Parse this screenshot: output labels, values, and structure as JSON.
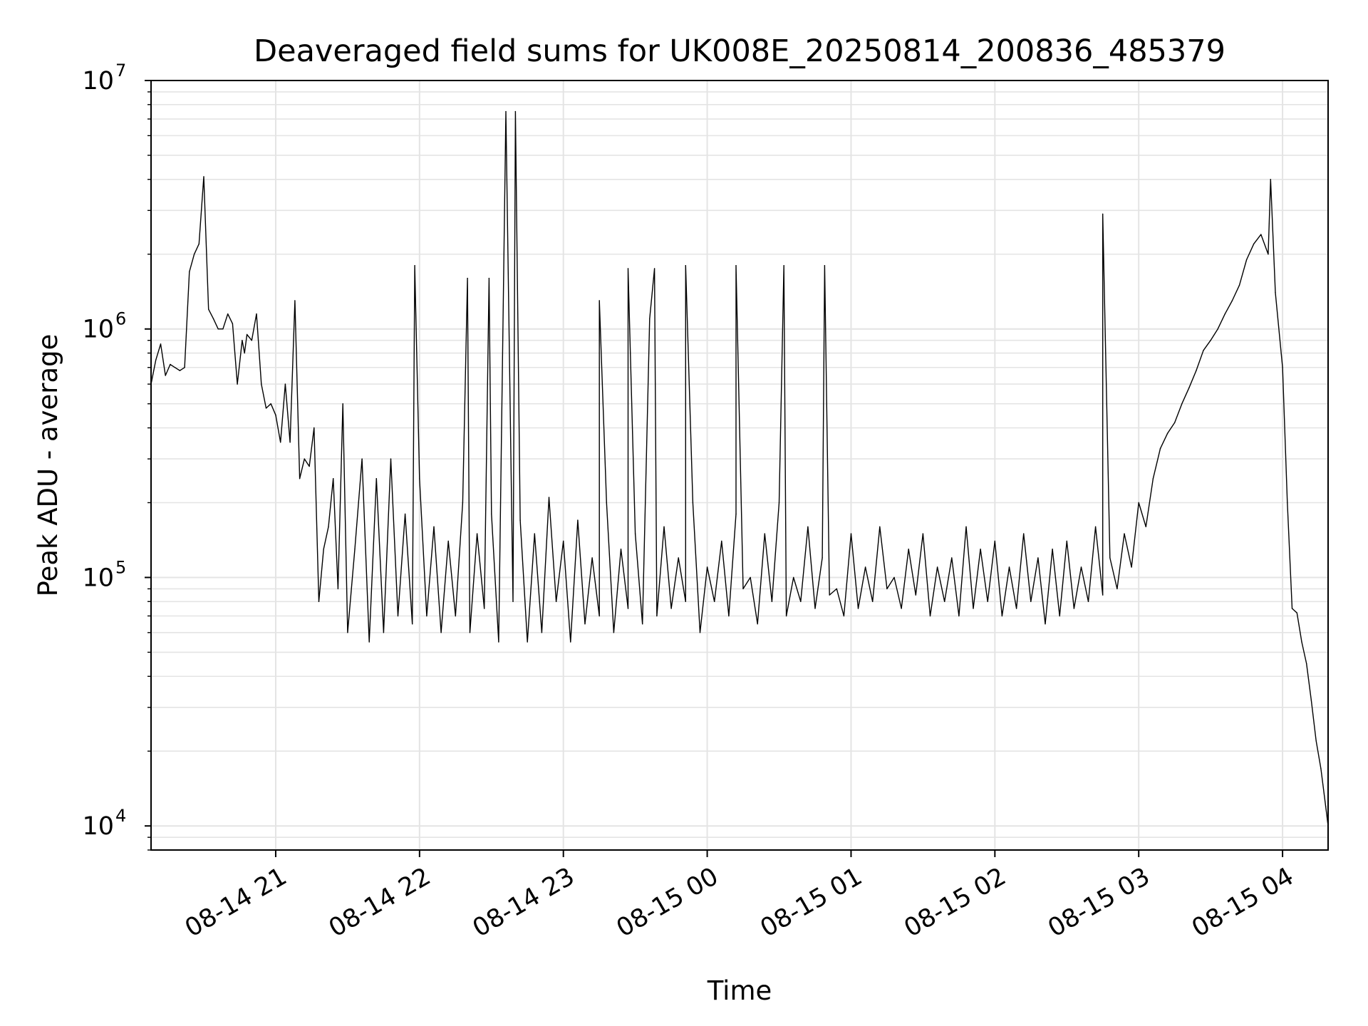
{
  "chart_data": {
    "type": "line",
    "title": "Deaveraged field sums for UK008E_20250814_200836_485379",
    "xlabel": "Time",
    "ylabel": "Peak ADU - average",
    "yscale": "log",
    "ylim": [
      8000,
      10000000
    ],
    "xlim": [
      "08-14 20:08",
      "08-15 04:19"
    ],
    "grid": true,
    "legend": "none",
    "line_color": "#000000",
    "x_ticks": [
      "08-14 21",
      "08-14 22",
      "08-14 23",
      "08-15 00",
      "08-15 01",
      "08-15 02",
      "08-15 03",
      "08-15 04"
    ],
    "y_ticks": [
      {
        "base": "10",
        "exp": "4",
        "value": 10000
      },
      {
        "base": "10",
        "exp": "5",
        "value": 100000
      },
      {
        "base": "10",
        "exp": "6",
        "value": 1000000
      },
      {
        "base": "10",
        "exp": "7",
        "value": 10000000
      }
    ],
    "series": [
      {
        "x": [
          "08-14 20:08",
          "08-14 20:10",
          "08-14 20:12",
          "08-14 20:14",
          "08-14 20:16",
          "08-14 20:18",
          "08-14 20:20",
          "08-14 20:22",
          "08-14 20:24",
          "08-14 20:26",
          "08-14 20:28",
          "08-14 20:30",
          "08-14 20:32",
          "08-14 20:34",
          "08-14 20:36",
          "08-14 20:38",
          "08-14 20:40",
          "08-14 20:42",
          "08-14 20:44",
          "08-14 20:46",
          "08-14 20:47",
          "08-14 20:48",
          "08-14 20:50",
          "08-14 20:52",
          "08-14 20:54",
          "08-14 20:56",
          "08-14 20:58",
          "08-14 21:00",
          "08-14 21:02",
          "08-14 21:04",
          "08-14 21:06",
          "08-14 21:08",
          "08-14 21:10",
          "08-14 21:12",
          "08-14 21:14",
          "08-14 21:16",
          "08-14 21:18",
          "08-14 21:20",
          "08-14 21:22",
          "08-14 21:24",
          "08-14 21:26",
          "08-14 21:28",
          "08-14 21:30",
          "08-14 21:33",
          "08-14 21:36",
          "08-14 21:39",
          "08-14 21:42",
          "08-14 21:45",
          "08-14 21:48",
          "08-14 21:51",
          "08-14 21:54",
          "08-14 21:57",
          "08-14 22:00",
          "08-14 22:03",
          "08-14 22:06",
          "08-14 22:09",
          "08-14 22:12",
          "08-14 22:15",
          "08-14 22:18",
          "08-14 22:21",
          "08-14 22:24",
          "08-14 22:27",
          "08-14 22:30",
          "08-14 22:33",
          "08-14 22:36",
          "08-14 22:39",
          "08-14 22:42",
          "08-14 22:45",
          "08-14 22:48",
          "08-14 22:51",
          "08-14 22:54",
          "08-14 22:57",
          "08-14 23:00",
          "08-14 23:03",
          "08-14 23:06",
          "08-14 23:09",
          "08-14 23:12",
          "08-14 23:15",
          "08-14 23:18",
          "08-14 23:21",
          "08-14 23:24",
          "08-14 23:27",
          "08-14 23:30",
          "08-14 23:33",
          "08-14 23:36",
          "08-14 23:39",
          "08-14 23:42",
          "08-14 23:45",
          "08-14 23:48",
          "08-14 23:51",
          "08-14 23:54",
          "08-14 23:57",
          "08-15 00:00",
          "08-15 00:03",
          "08-15 00:06",
          "08-15 00:09",
          "08-15 00:12",
          "08-15 00:15",
          "08-15 00:18",
          "08-15 00:21",
          "08-15 00:24",
          "08-15 00:27",
          "08-15 00:30",
          "08-15 00:33",
          "08-15 00:36",
          "08-15 00:39",
          "08-15 00:42",
          "08-15 00:45",
          "08-15 00:48",
          "08-15 00:51",
          "08-15 00:54",
          "08-15 00:57",
          "08-15 01:00",
          "08-15 01:03",
          "08-15 01:06",
          "08-15 01:09",
          "08-15 01:12",
          "08-15 01:15",
          "08-15 01:18",
          "08-15 01:21",
          "08-15 01:24",
          "08-15 01:27",
          "08-15 01:30",
          "08-15 01:33",
          "08-15 01:36",
          "08-15 01:39",
          "08-15 01:42",
          "08-15 01:45",
          "08-15 01:48",
          "08-15 01:51",
          "08-15 01:54",
          "08-15 01:57",
          "08-15 02:00",
          "08-15 02:03",
          "08-15 02:06",
          "08-15 02:09",
          "08-15 02:12",
          "08-15 02:15",
          "08-15 02:18",
          "08-15 02:21",
          "08-15 02:24",
          "08-15 02:27",
          "08-15 02:30",
          "08-15 02:33",
          "08-15 02:36",
          "08-15 02:39",
          "08-15 02:42",
          "08-15 02:45",
          "08-15 02:48",
          "08-15 02:51",
          "08-15 02:54",
          "08-15 02:57",
          "08-15 03:00",
          "08-15 03:03",
          "08-15 03:06",
          "08-15 03:09",
          "08-15 03:12",
          "08-15 03:15",
          "08-15 03:18",
          "08-15 03:21",
          "08-15 03:24",
          "08-15 03:27",
          "08-15 03:30",
          "08-15 03:33",
          "08-15 03:36",
          "08-15 03:39",
          "08-15 03:42",
          "08-15 03:45",
          "08-15 03:48",
          "08-15 03:51",
          "08-15 03:54",
          "08-15 03:57",
          "08-15 04:00",
          "08-15 04:02",
          "08-15 04:04",
          "08-15 04:06",
          "08-15 04:08",
          "08-15 04:10",
          "08-15 04:12",
          "08-15 04:14",
          "08-15 04:16",
          "08-15 04:18",
          "08-15 04:19"
        ],
        "y": [
          600000,
          750000,
          870000,
          650000,
          720000,
          700000,
          680000,
          700000,
          1700000,
          2000000,
          2200000,
          4100000,
          1200000,
          1100000,
          1000000,
          1000000,
          1150000,
          1050000,
          600000,
          900000,
          800000,
          950000,
          900000,
          1150000,
          600000,
          480000,
          500000,
          450000,
          350000,
          600000,
          350000,
          1300000,
          250000,
          300000,
          280000,
          400000,
          80000,
          130000,
          160000,
          250000,
          90000,
          500000,
          60000,
          130000,
          300000,
          55000,
          250000,
          60000,
          300000,
          70000,
          180000,
          65000,
          250000,
          70000,
          160000,
          60000,
          140000,
          70000,
          200000,
          60000,
          150000,
          75000,
          180000,
          55000,
          7500000,
          80000,
          170000,
          55000,
          150000,
          60000,
          210000,
          80000,
          140000,
          55000,
          170000,
          65000,
          120000,
          70000,
          200000,
          60000,
          130000,
          75000,
          150000,
          65000,
          1100000,
          70000,
          160000,
          75000,
          120000,
          80000,
          200000,
          60000,
          110000,
          80000,
          140000,
          70000,
          180000,
          90000,
          100000,
          65000,
          150000,
          80000,
          200000,
          70000,
          100000,
          80000,
          160000,
          75000,
          120000,
          85000,
          90000,
          70000,
          150000,
          75000,
          110000,
          80000,
          160000,
          90000,
          100000,
          75000,
          130000,
          85000,
          150000,
          70000,
          110000,
          80000,
          120000,
          70000,
          160000,
          75000,
          130000,
          80000,
          140000,
          70000,
          110000,
          75000,
          150000,
          80000,
          120000,
          65000,
          130000,
          70000,
          140000,
          75000,
          110000,
          80000,
          160000,
          85000,
          120000,
          90000,
          150000,
          110000,
          200000,
          160000,
          250000,
          330000,
          380000,
          420000,
          500000,
          580000,
          680000,
          820000,
          900000,
          1000000,
          1150000,
          1300000,
          1500000,
          1900000,
          2200000,
          2400000,
          2000000,
          1400000,
          700000,
          200000,
          75000,
          72000,
          55000,
          45000,
          32000,
          22000,
          17000,
          12000,
          10000
        ],
        "spikes": [
          {
            "x": "08-14 21:58",
            "y": 1800000
          },
          {
            "x": "08-14 22:20",
            "y": 1600000
          },
          {
            "x": "08-14 22:29",
            "y": 1600000
          },
          {
            "x": "08-14 22:40",
            "y": 7500000
          },
          {
            "x": "08-14 23:15",
            "y": 1300000
          },
          {
            "x": "08-14 23:27",
            "y": 1750000
          },
          {
            "x": "08-14 23:38",
            "y": 1750000
          },
          {
            "x": "08-14 23:51",
            "y": 1800000
          },
          {
            "x": "08-15 00:12",
            "y": 1800000
          },
          {
            "x": "08-15 00:32",
            "y": 1800000
          },
          {
            "x": "08-15 00:49",
            "y": 1800000
          },
          {
            "x": "08-15 02:45",
            "y": 2900000
          },
          {
            "x": "08-15 03:55",
            "y": 4000000
          }
        ]
      }
    ]
  }
}
